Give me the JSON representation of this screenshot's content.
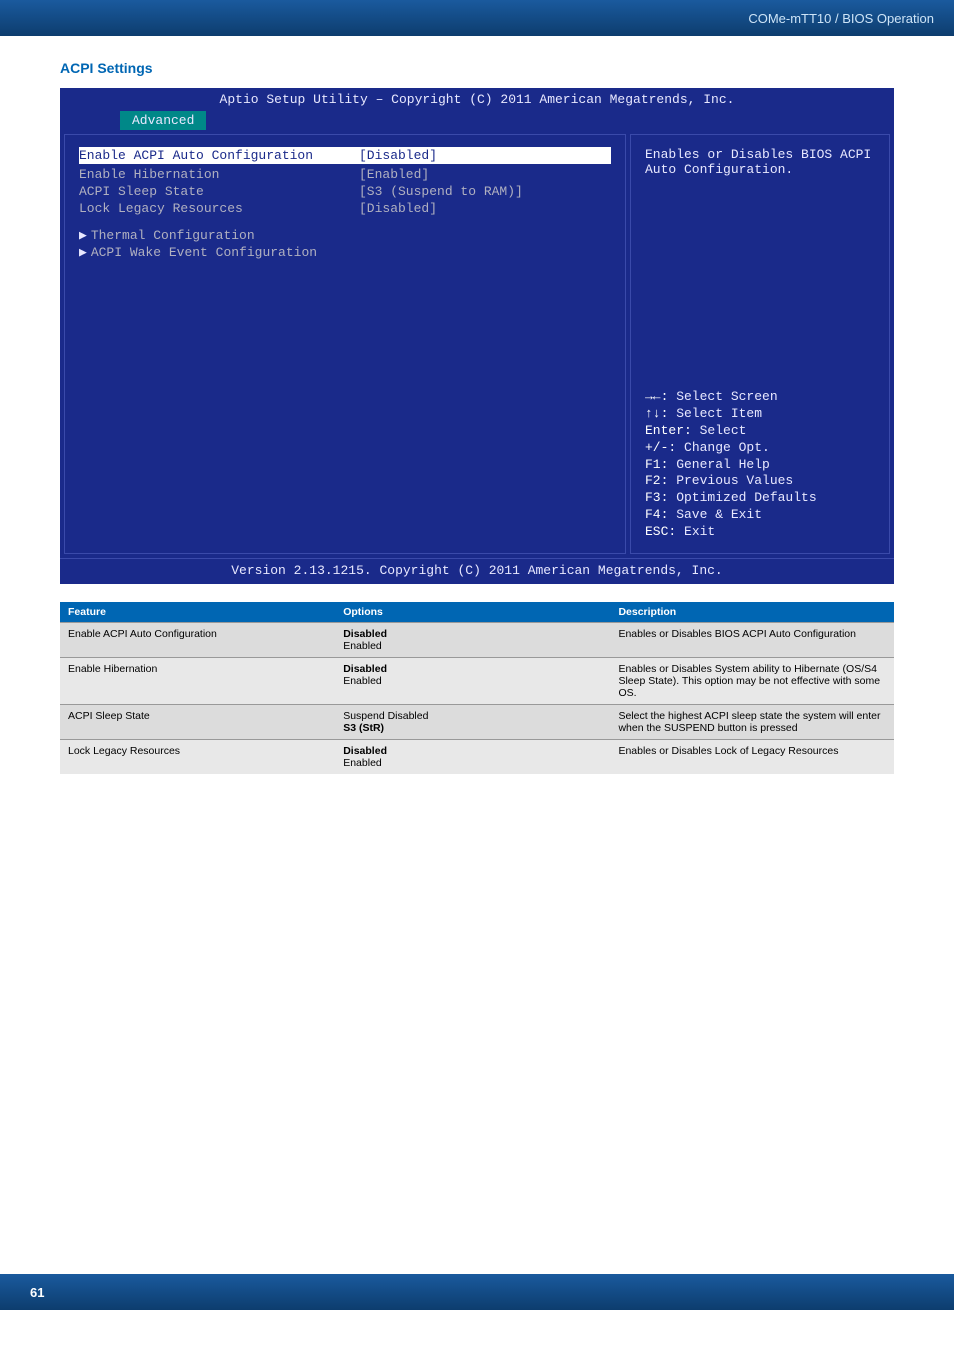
{
  "header": {
    "breadcrumb": "COMe-mTT10 / BIOS Operation"
  },
  "section": {
    "title": "ACPI Settings"
  },
  "bios": {
    "title": "Aptio Setup Utility – Copyright (C) 2011 American Megatrends, Inc.",
    "tab": "Advanced",
    "rows": [
      {
        "label": "Enable ACPI Auto Configuration",
        "value": "[Disabled]",
        "highlight": true
      },
      {
        "label": "",
        "value": ""
      },
      {
        "label": "Enable Hibernation",
        "value": "[Enabled]"
      },
      {
        "label": "ACPI Sleep State",
        "value": "[S3 (Suspend to RAM)]"
      },
      {
        "label": "Lock Legacy Resources",
        "value": "[Disabled]"
      }
    ],
    "subitems": [
      "Thermal Configuration",
      "ACPI Wake Event Configuration"
    ],
    "help_top": "Enables or Disables BIOS ACPI Auto Configuration.",
    "help_keys": [
      {
        "k": "→←:",
        "t": " Select Screen"
      },
      {
        "k": "↑↓:",
        "t": " Select Item"
      },
      {
        "k": "Enter:",
        "t": " Select"
      },
      {
        "k": "+/-:",
        "t": " Change Opt."
      },
      {
        "k": "F1:",
        "t": " General Help"
      },
      {
        "k": "F2:",
        "t": " Previous Values"
      },
      {
        "k": "F3:",
        "t": " Optimized Defaults"
      },
      {
        "k": "F4:",
        "t": " Save & Exit"
      },
      {
        "k": "ESC:",
        "t": " Exit"
      }
    ],
    "footer": "Version 2.13.1215. Copyright (C) 2011 American Megatrends, Inc."
  },
  "table": {
    "headers": [
      "Feature",
      "Options",
      "Description"
    ],
    "rows": [
      {
        "feature": "Enable ACPI Auto Configuration",
        "opt_bold": "Disabled",
        "opt_rest": "Enabled",
        "desc": "Enables or Disables BIOS ACPI Auto Configuration"
      },
      {
        "feature": "Enable Hibernation",
        "opt_bold": "Disabled",
        "opt_rest": "Enabled",
        "desc": "Enables or Disables System ability to Hibernate (OS/S4 Sleep State). This option may be not effective with some OS."
      },
      {
        "feature": "ACPI Sleep State",
        "opt_plain": "Suspend Disabled",
        "opt_bold2": "S3 (StR)",
        "desc": "Select the highest ACPI sleep state the system will enter when the SUSPEND button is pressed"
      },
      {
        "feature": "Lock Legacy Resources",
        "opt_bold": "Disabled",
        "opt_rest": "Enabled",
        "desc": "Enables or Disables Lock of Legacy Resources"
      }
    ]
  },
  "footer": {
    "page": "61"
  }
}
